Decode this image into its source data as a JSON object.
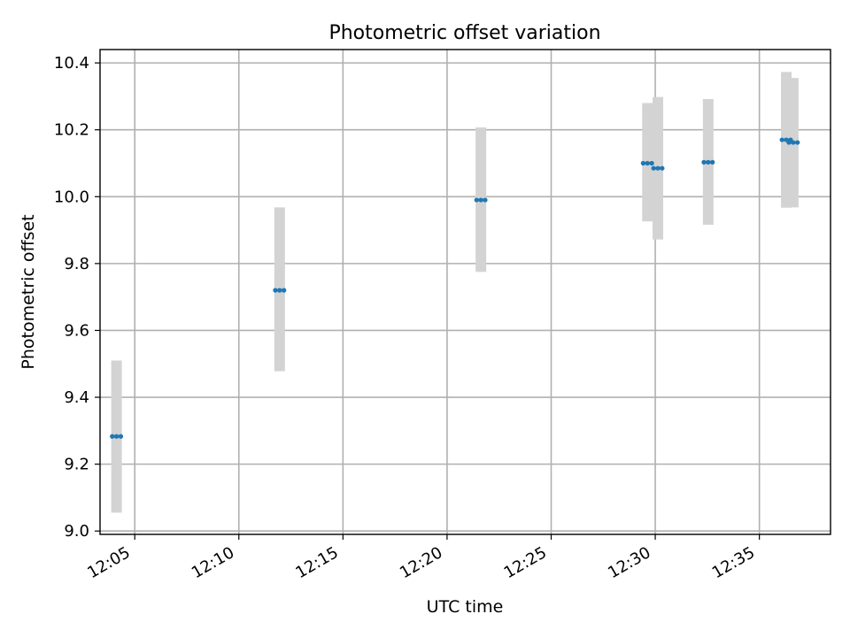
{
  "chart_data": {
    "type": "scatter",
    "title": "Photometric offset variation",
    "xlabel": "UTC time",
    "ylabel": "Photometric offset",
    "x_ticks": [
      "12:05",
      "12:10",
      "12:15",
      "12:20",
      "12:25",
      "12:30",
      "12:35"
    ],
    "y_ticks": [
      "9.0",
      "9.2",
      "9.4",
      "9.6",
      "9.8",
      "10.0",
      "10.2",
      "10.4"
    ],
    "xlim": [
      "12:03:20",
      "12:38:25"
    ],
    "ylim": [
      8.99,
      10.44
    ],
    "grid": true,
    "series": [
      {
        "color": "#1f77b4",
        "errorbar_color": "#d3d3d3",
        "points": [
          {
            "x_start": "12:03:55",
            "x_end": "12:04:20",
            "y": 9.283,
            "y_low": 9.055,
            "y_high": 9.51
          },
          {
            "x_start": "12:11:45",
            "x_end": "12:12:10",
            "y": 9.72,
            "y_low": 9.478,
            "y_high": 9.968
          },
          {
            "x_start": "12:21:25",
            "x_end": "12:21:50",
            "y": 9.99,
            "y_low": 9.775,
            "y_high": 10.207
          },
          {
            "x_start": "12:29:25",
            "x_end": "12:29:50",
            "y": 10.1,
            "y_low": 9.926,
            "y_high": 10.28
          },
          {
            "x_start": "12:29:55",
            "x_end": "12:30:20",
            "y": 10.085,
            "y_low": 9.872,
            "y_high": 10.298
          },
          {
            "x_start": "12:32:20",
            "x_end": "12:32:45",
            "y": 10.103,
            "y_low": 9.916,
            "y_high": 10.292
          },
          {
            "x_start": "12:36:05",
            "x_end": "12:36:30",
            "y": 10.17,
            "y_low": 9.967,
            "y_high": 10.373
          },
          {
            "x_start": "12:36:25",
            "x_end": "12:36:50",
            "y": 10.162,
            "y_low": 9.968,
            "y_high": 10.355
          }
        ]
      }
    ]
  }
}
